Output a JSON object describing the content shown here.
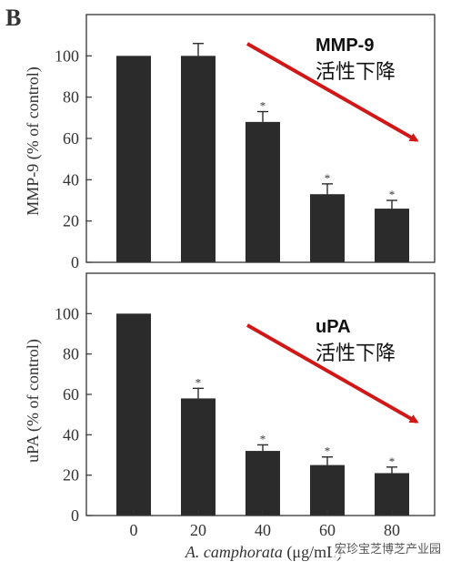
{
  "figure": {
    "panel_letter": "B",
    "x_axis_title": "A. camphorata (μg/mL)",
    "x_axis_title_italic": "A. camphorata",
    "x_axis_title_unit": " (μg/mL)",
    "watermark": "宏珍宝芝博芝产业园"
  },
  "colors": {
    "bar": "#2b2b2b",
    "arrow": "#d01818",
    "axis": "#333333",
    "text": "#333333"
  },
  "chart_data": [
    {
      "type": "bar",
      "panel": "top",
      "categories": [
        "0",
        "20",
        "40",
        "60",
        "80"
      ],
      "series": [
        {
          "values": [
            100,
            100,
            68,
            33,
            26
          ],
          "errors": [
            0,
            6,
            5,
            5,
            4
          ]
        }
      ],
      "significance": [
        "",
        "",
        "*",
        "*",
        "*"
      ],
      "ylabel": "MMP-9 (% of control)",
      "ylim": [
        0,
        120
      ],
      "yticks": [
        0,
        20,
        40,
        60,
        80,
        100
      ],
      "annotation": {
        "line1": "MMP-9",
        "line2": "活性下降"
      },
      "grid": false
    },
    {
      "type": "bar",
      "panel": "bottom",
      "categories": [
        "0",
        "20",
        "40",
        "60",
        "80"
      ],
      "series": [
        {
          "values": [
            100,
            58,
            32,
            25,
            21
          ],
          "errors": [
            0,
            5,
            3,
            4,
            3
          ]
        }
      ],
      "significance": [
        "",
        "*",
        "*",
        "*",
        "*"
      ],
      "ylabel": "uPA (% of control)",
      "ylim": [
        0,
        120
      ],
      "yticks": [
        0,
        20,
        40,
        60,
        80,
        100
      ],
      "annotation": {
        "line1": "uPA",
        "line2": "活性下降"
      },
      "grid": false
    }
  ]
}
